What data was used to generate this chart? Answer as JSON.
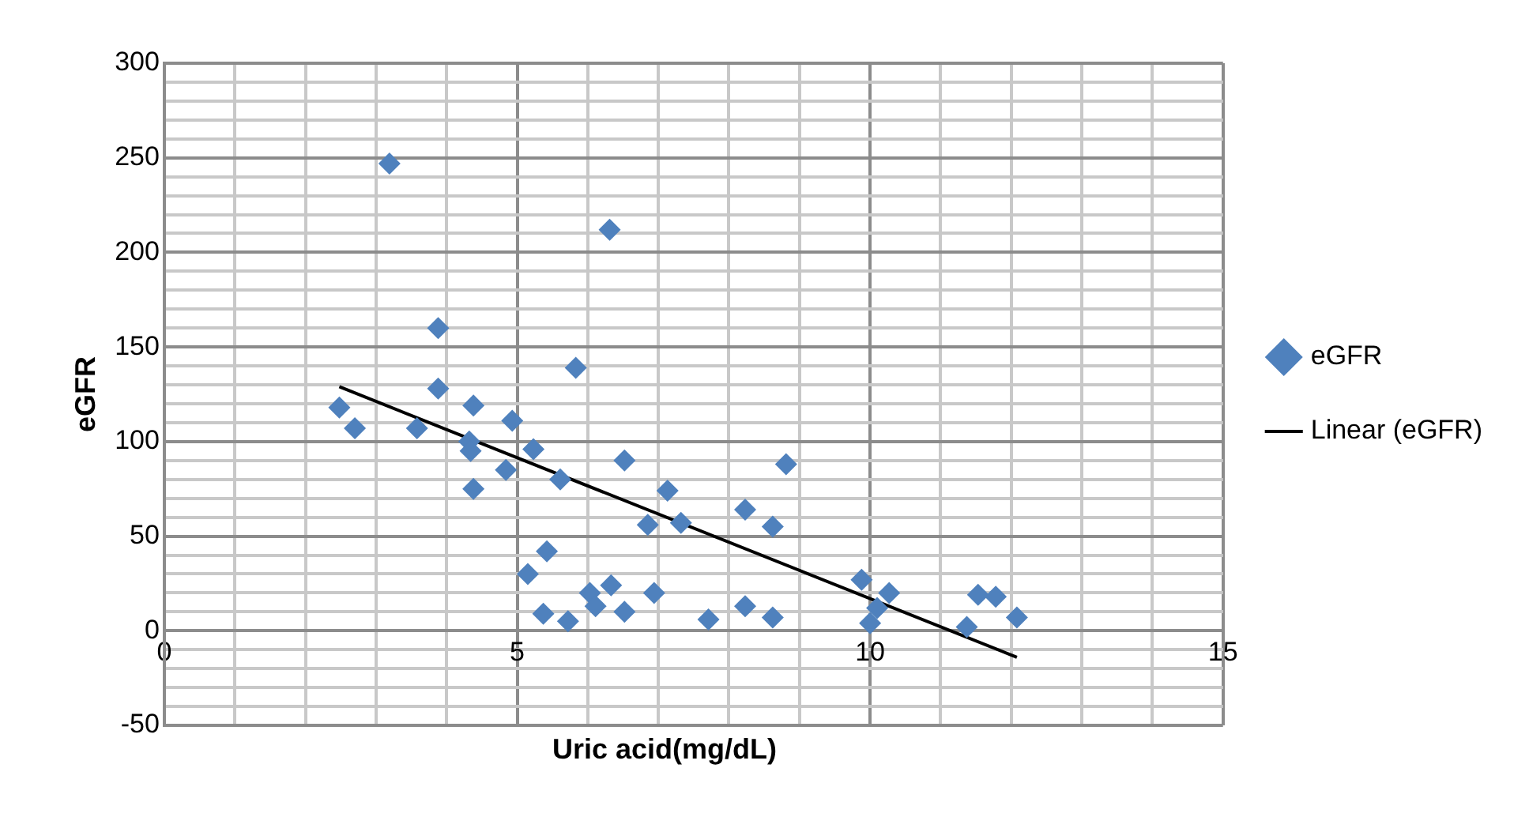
{
  "chart_data": {
    "type": "scatter",
    "xlabel": "Uric acid(mg/dL)",
    "ylabel": "eGFR",
    "xlim": [
      0,
      15
    ],
    "ylim": [
      -50,
      300
    ],
    "xticks": [
      0,
      {
        "value": 1,
        "label": null
      },
      {
        "value": 2,
        "label": null
      },
      {
        "value": 3,
        "label": null
      },
      {
        "value": 4,
        "label": null
      },
      5,
      {
        "value": 6,
        "label": null
      },
      {
        "value": 7,
        "label": null
      },
      {
        "value": 8,
        "label": null
      },
      {
        "value": 9,
        "label": null
      },
      10,
      {
        "value": 11,
        "label": null
      },
      {
        "value": 12,
        "label": null
      },
      {
        "value": 13,
        "label": null
      },
      {
        "value": 14,
        "label": null
      },
      15
    ],
    "yticks": [
      -50,
      {
        "value": -40,
        "label": null
      },
      {
        "value": -30,
        "label": null
      },
      {
        "value": -20,
        "label": null
      },
      {
        "value": -10,
        "label": null
      },
      0,
      {
        "value": 10,
        "label": null
      },
      {
        "value": 20,
        "label": null
      },
      {
        "value": 30,
        "label": null
      },
      {
        "value": 40,
        "label": null
      },
      50,
      {
        "value": 60,
        "label": null
      },
      {
        "value": 70,
        "label": null
      },
      {
        "value": 80,
        "label": null
      },
      {
        "value": 90,
        "label": null
      },
      100,
      {
        "value": 110,
        "label": null
      },
      {
        "value": 120,
        "label": null
      },
      {
        "value": 130,
        "label": null
      },
      {
        "value": 140,
        "label": null
      },
      150,
      {
        "value": 160,
        "label": null
      },
      {
        "value": 170,
        "label": null
      },
      {
        "value": 180,
        "label": null
      },
      {
        "value": 190,
        "label": null
      },
      200,
      {
        "value": 210,
        "label": null
      },
      {
        "value": 220,
        "label": null
      },
      {
        "value": 230,
        "label": null
      },
      {
        "value": 240,
        "label": null
      },
      250,
      {
        "value": 260,
        "label": null
      },
      {
        "value": 270,
        "label": null
      },
      {
        "value": 280,
        "label": null
      },
      {
        "value": 290,
        "label": null
      },
      300
    ],
    "grid": true,
    "legend": "right",
    "marker": "diamond",
    "series": [
      {
        "name": "eGFR",
        "color": "#4f81bd",
        "x": [
          2.48,
          2.7,
          3.19,
          3.58,
          3.88,
          3.88,
          4.38,
          4.32,
          4.34,
          4.38,
          4.93,
          4.84,
          5.23,
          5.15,
          5.42,
          5.37,
          5.61,
          5.83,
          5.72,
          6.31,
          6.03,
          6.11,
          6.33,
          6.52,
          6.52,
          6.85,
          7.13,
          7.32,
          6.94,
          7.71,
          8.81,
          8.23,
          8.62,
          8.23,
          8.62,
          9.88,
          10.27,
          10.1,
          10.0,
          11.53,
          11.78,
          11.37,
          12.08
        ],
        "values": [
          118,
          107,
          247,
          107,
          160,
          128,
          119,
          100,
          95,
          75,
          111,
          85,
          96,
          30,
          42,
          9,
          80,
          139,
          5,
          212,
          20,
          13,
          24,
          10,
          90,
          56,
          74,
          57,
          20,
          6,
          88,
          64,
          55,
          13,
          7,
          27,
          20,
          12,
          4,
          19,
          18,
          2,
          7
        ]
      },
      {
        "name": "Linear (eGFR)",
        "type": "line",
        "color": "#000000",
        "marker": "none",
        "x": [
          2.48,
          12.08
        ],
        "values": [
          129,
          -14
        ]
      }
    ]
  }
}
